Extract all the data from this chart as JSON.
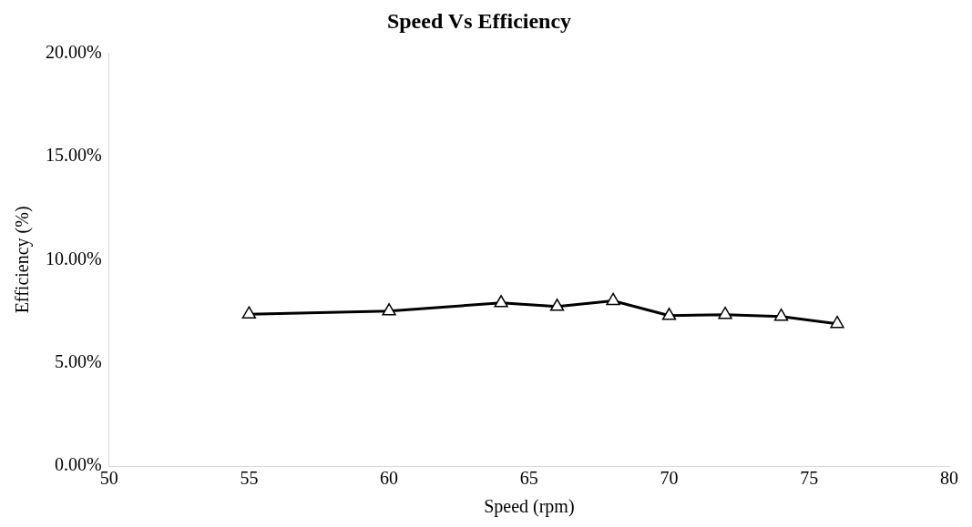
{
  "chart_data": {
    "type": "line",
    "title": "Speed Vs Efficiency",
    "xlabel": "Speed (rpm)",
    "ylabel": "Efficiency (%)",
    "x": [
      55,
      60,
      64,
      66,
      68,
      70,
      72,
      74,
      76
    ],
    "series": [
      {
        "color": "#000000",
        "values": [
          7.36,
          7.51,
          7.91,
          7.73,
          8.01,
          7.29,
          7.34,
          7.25,
          6.9
        ]
      }
    ],
    "xlim": [
      50,
      80
    ],
    "xticks": [
      50,
      55,
      60,
      65,
      70,
      75,
      80
    ],
    "ylim": [
      0,
      20
    ],
    "yticks": [
      {
        "value": 0,
        "label": "0.00%"
      },
      {
        "value": 5,
        "label": "5.00%"
      },
      {
        "value": 10,
        "label": "10.00%"
      },
      {
        "value": 15,
        "label": "15.00%"
      },
      {
        "value": 20,
        "label": "20.00%"
      }
    ],
    "grid": false,
    "legend": false,
    "marker": "triangle",
    "line_style": "solid"
  }
}
